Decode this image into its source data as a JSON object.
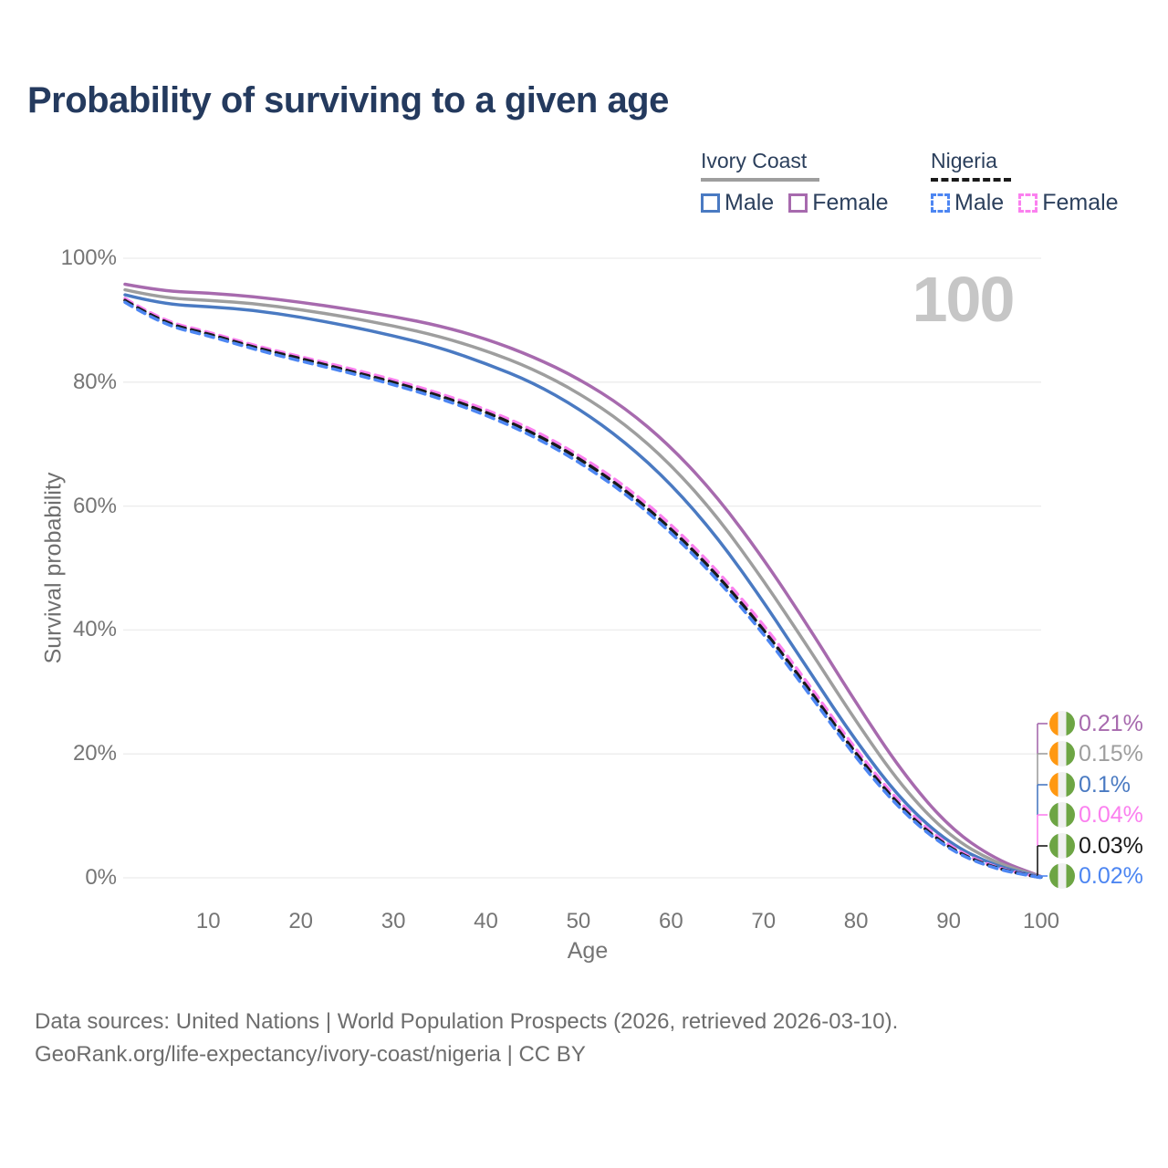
{
  "title": "Probability of surviving to a given age",
  "hover_age": "100",
  "legend": {
    "groups": [
      {
        "name": "Ivory Coast",
        "line_style": "solid",
        "line_color": "#9e9e9e",
        "items": [
          {
            "label": "Male",
            "color": "#4a7ac2",
            "swatch_style": "solid"
          },
          {
            "label": "Female",
            "color": "#a76aae",
            "swatch_style": "solid"
          }
        ]
      },
      {
        "name": "Nigeria",
        "line_style": "dashed",
        "line_color": "#1a1a1a",
        "items": [
          {
            "label": "Male",
            "color": "#4d86f2",
            "swatch_style": "dashed"
          },
          {
            "label": "Female",
            "color": "#fb80ef",
            "swatch_style": "dashed"
          }
        ]
      }
    ]
  },
  "chart_data": {
    "type": "line",
    "title": "Probability of surviving to a given age",
    "xlabel": "Age",
    "ylabel": "Survival probability",
    "xlim": [
      1,
      100
    ],
    "ylim": [
      0,
      100
    ],
    "grid": "horizontal",
    "legend_position": "top-right",
    "x_ticks": [
      10,
      20,
      30,
      40,
      50,
      60,
      70,
      80,
      90,
      100
    ],
    "y_ticks": [
      {
        "value": 0,
        "label": "0%"
      },
      {
        "value": 20,
        "label": "20%"
      },
      {
        "value": 40,
        "label": "40%"
      },
      {
        "value": 60,
        "label": "60%"
      },
      {
        "value": 80,
        "label": "80%"
      },
      {
        "value": 100,
        "label": "100%"
      }
    ],
    "ages": [
      1,
      5,
      10,
      15,
      20,
      25,
      30,
      35,
      40,
      45,
      50,
      55,
      60,
      65,
      70,
      75,
      80,
      85,
      90,
      95,
      100
    ],
    "series": [
      {
        "name": "Ivory Coast Female",
        "color": "#a76aae",
        "dashed": false,
        "flag": [
          "#FF9811",
          "#F0F0F0",
          "#6DA544"
        ],
        "end_label": "0.21%",
        "values": [
          95.8,
          94.7,
          94.4,
          93.8,
          92.9,
          91.8,
          90.6,
          89.1,
          87.0,
          84.2,
          80.6,
          75.9,
          69.6,
          61.5,
          51.5,
          40.2,
          28.2,
          17.0,
          8.2,
          3.0,
          0.21
        ]
      },
      {
        "name": "Ivory Coast",
        "color": "#9e9e9e",
        "dashed": false,
        "flag": [
          "#FF9811",
          "#F0F0F0",
          "#6DA544"
        ],
        "end_label": "0.15%",
        "values": [
          94.9,
          93.6,
          93.2,
          92.7,
          91.7,
          90.5,
          89.1,
          87.4,
          85.1,
          82.2,
          78.3,
          73.3,
          66.7,
          58.3,
          48.0,
          36.8,
          25.2,
          14.6,
          6.8,
          2.4,
          0.15
        ]
      },
      {
        "name": "Ivory Coast Male",
        "color": "#4a7ac2",
        "dashed": false,
        "flag": [
          "#FF9811",
          "#F0F0F0",
          "#6DA544"
        ],
        "end_label": "0.1%",
        "values": [
          94.1,
          92.6,
          92.2,
          91.6,
          90.5,
          89.1,
          87.5,
          85.6,
          83.0,
          80.0,
          75.8,
          70.4,
          63.6,
          55.0,
          44.6,
          33.2,
          22.0,
          12.3,
          5.6,
          1.9,
          0.1
        ]
      },
      {
        "name": "Nigeria Female",
        "color": "#fb80ef",
        "dashed": true,
        "flag": [
          "#6DA544",
          "#F0F0F0",
          "#6DA544"
        ],
        "end_label": "0.04%",
        "values": [
          93.5,
          89.9,
          88.1,
          85.9,
          84.1,
          82.3,
          80.4,
          78.2,
          75.6,
          72.4,
          68.3,
          63.3,
          57.1,
          49.6,
          40.9,
          31.0,
          20.6,
          11.5,
          5.0,
          1.6,
          0.04
        ]
      },
      {
        "name": "Nigeria",
        "color": "#1a1a1a",
        "dashed": true,
        "flag": [
          "#6DA544",
          "#F0F0F0",
          "#6DA544"
        ],
        "end_label": "0.03%",
        "values": [
          93.2,
          89.6,
          87.8,
          85.6,
          83.8,
          81.9,
          80.0,
          77.8,
          75.2,
          71.9,
          67.8,
          62.7,
          56.4,
          48.9,
          40.1,
          30.3,
          19.9,
          11.0,
          4.7,
          1.5,
          0.03
        ]
      },
      {
        "name": "Nigeria Male",
        "color": "#4d86f2",
        "dashed": true,
        "flag": [
          "#6DA544",
          "#F0F0F0",
          "#6DA544"
        ],
        "end_label": "0.02%",
        "values": [
          92.9,
          89.3,
          87.5,
          85.3,
          83.4,
          81.6,
          79.6,
          77.4,
          74.7,
          71.4,
          67.2,
          62.1,
          55.8,
          48.2,
          39.4,
          29.6,
          19.3,
          10.6,
          4.5,
          1.4,
          0.02
        ]
      }
    ]
  },
  "footer": {
    "line1": "Data sources: United Nations | World Population Prospects (2026, retrieved 2026-03-10).",
    "line2": "GeoRank.org/life-expectancy/ivory-coast/nigeria | CC BY"
  }
}
